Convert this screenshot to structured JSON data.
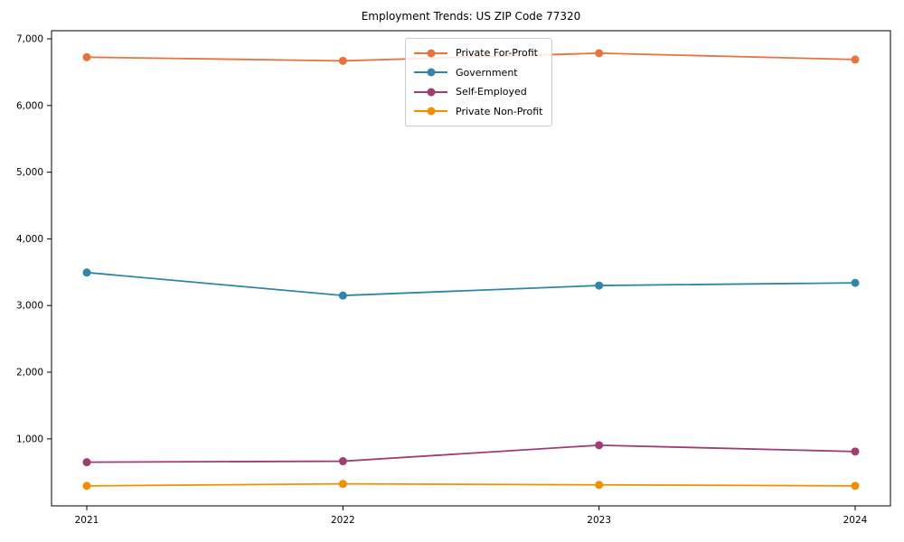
{
  "chart_data": {
    "type": "line",
    "title": "Employment Trends: US ZIP Code 77320",
    "categories": [
      "2021",
      "2022",
      "2023",
      "2024"
    ],
    "series": [
      {
        "name": "Private For-Profit",
        "color": "#E8743B",
        "values": [
          6725,
          6670,
          6785,
          6690
        ]
      },
      {
        "name": "Government",
        "color": "#2E86AB",
        "values": [
          3495,
          3150,
          3300,
          3340
        ]
      },
      {
        "name": "Self-Employed",
        "color": "#A23B72",
        "values": [
          650,
          665,
          905,
          810
        ]
      },
      {
        "name": "Private Non-Profit",
        "color": "#F18F01",
        "values": [
          295,
          325,
          310,
          295
        ]
      }
    ],
    "xlabel": "",
    "ylabel": "",
    "ylim": [
      -5,
      7122
    ],
    "yticks": [
      1000,
      2000,
      3000,
      4000,
      5000,
      6000,
      7000
    ],
    "ytick_labels": [
      "1,000",
      "2,000",
      "3,000",
      "4,000",
      "5,000",
      "6,000",
      "7,000"
    ],
    "grid": false,
    "marker": "circle",
    "legend_position": "upper center",
    "axis_color": "#000000"
  }
}
